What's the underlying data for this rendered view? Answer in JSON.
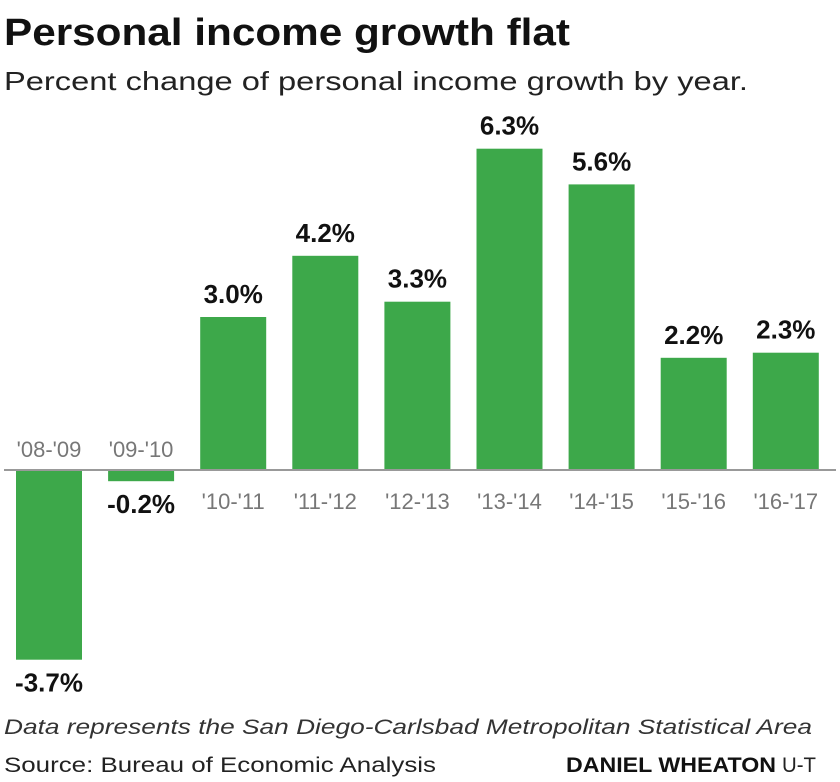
{
  "chart_data": {
    "type": "bar",
    "title": "Personal income growth flat",
    "subtitle": "Percent change of personal income growth by year.",
    "categories": [
      "'08-'09",
      "'09-'10",
      "'10-'11",
      "'11-'12",
      "'12-'13",
      "'13-'14",
      "'14-'15",
      "'15-'16",
      "'16-'17"
    ],
    "values": [
      -3.7,
      -0.2,
      3.0,
      4.2,
      3.3,
      6.3,
      5.6,
      2.2,
      2.3
    ],
    "value_labels": [
      "-3.7%",
      "-0.2%",
      "3.0%",
      "4.2%",
      "3.3%",
      "6.3%",
      "5.6%",
      "2.2%",
      "2.3%"
    ],
    "xlabel": "",
    "ylabel": "",
    "ylim": [
      -3.7,
      6.3
    ],
    "grid": false,
    "legend": "none",
    "bar_color": "#3da84a",
    "baseline_color": "#999999",
    "note": "Data represents the San Diego-Carlsbad Metropolitan Statistical Area",
    "source": "Source: Bureau of Economic Analysis",
    "credit_name": "DANIEL WHEATON",
    "credit_org": "U-T"
  }
}
